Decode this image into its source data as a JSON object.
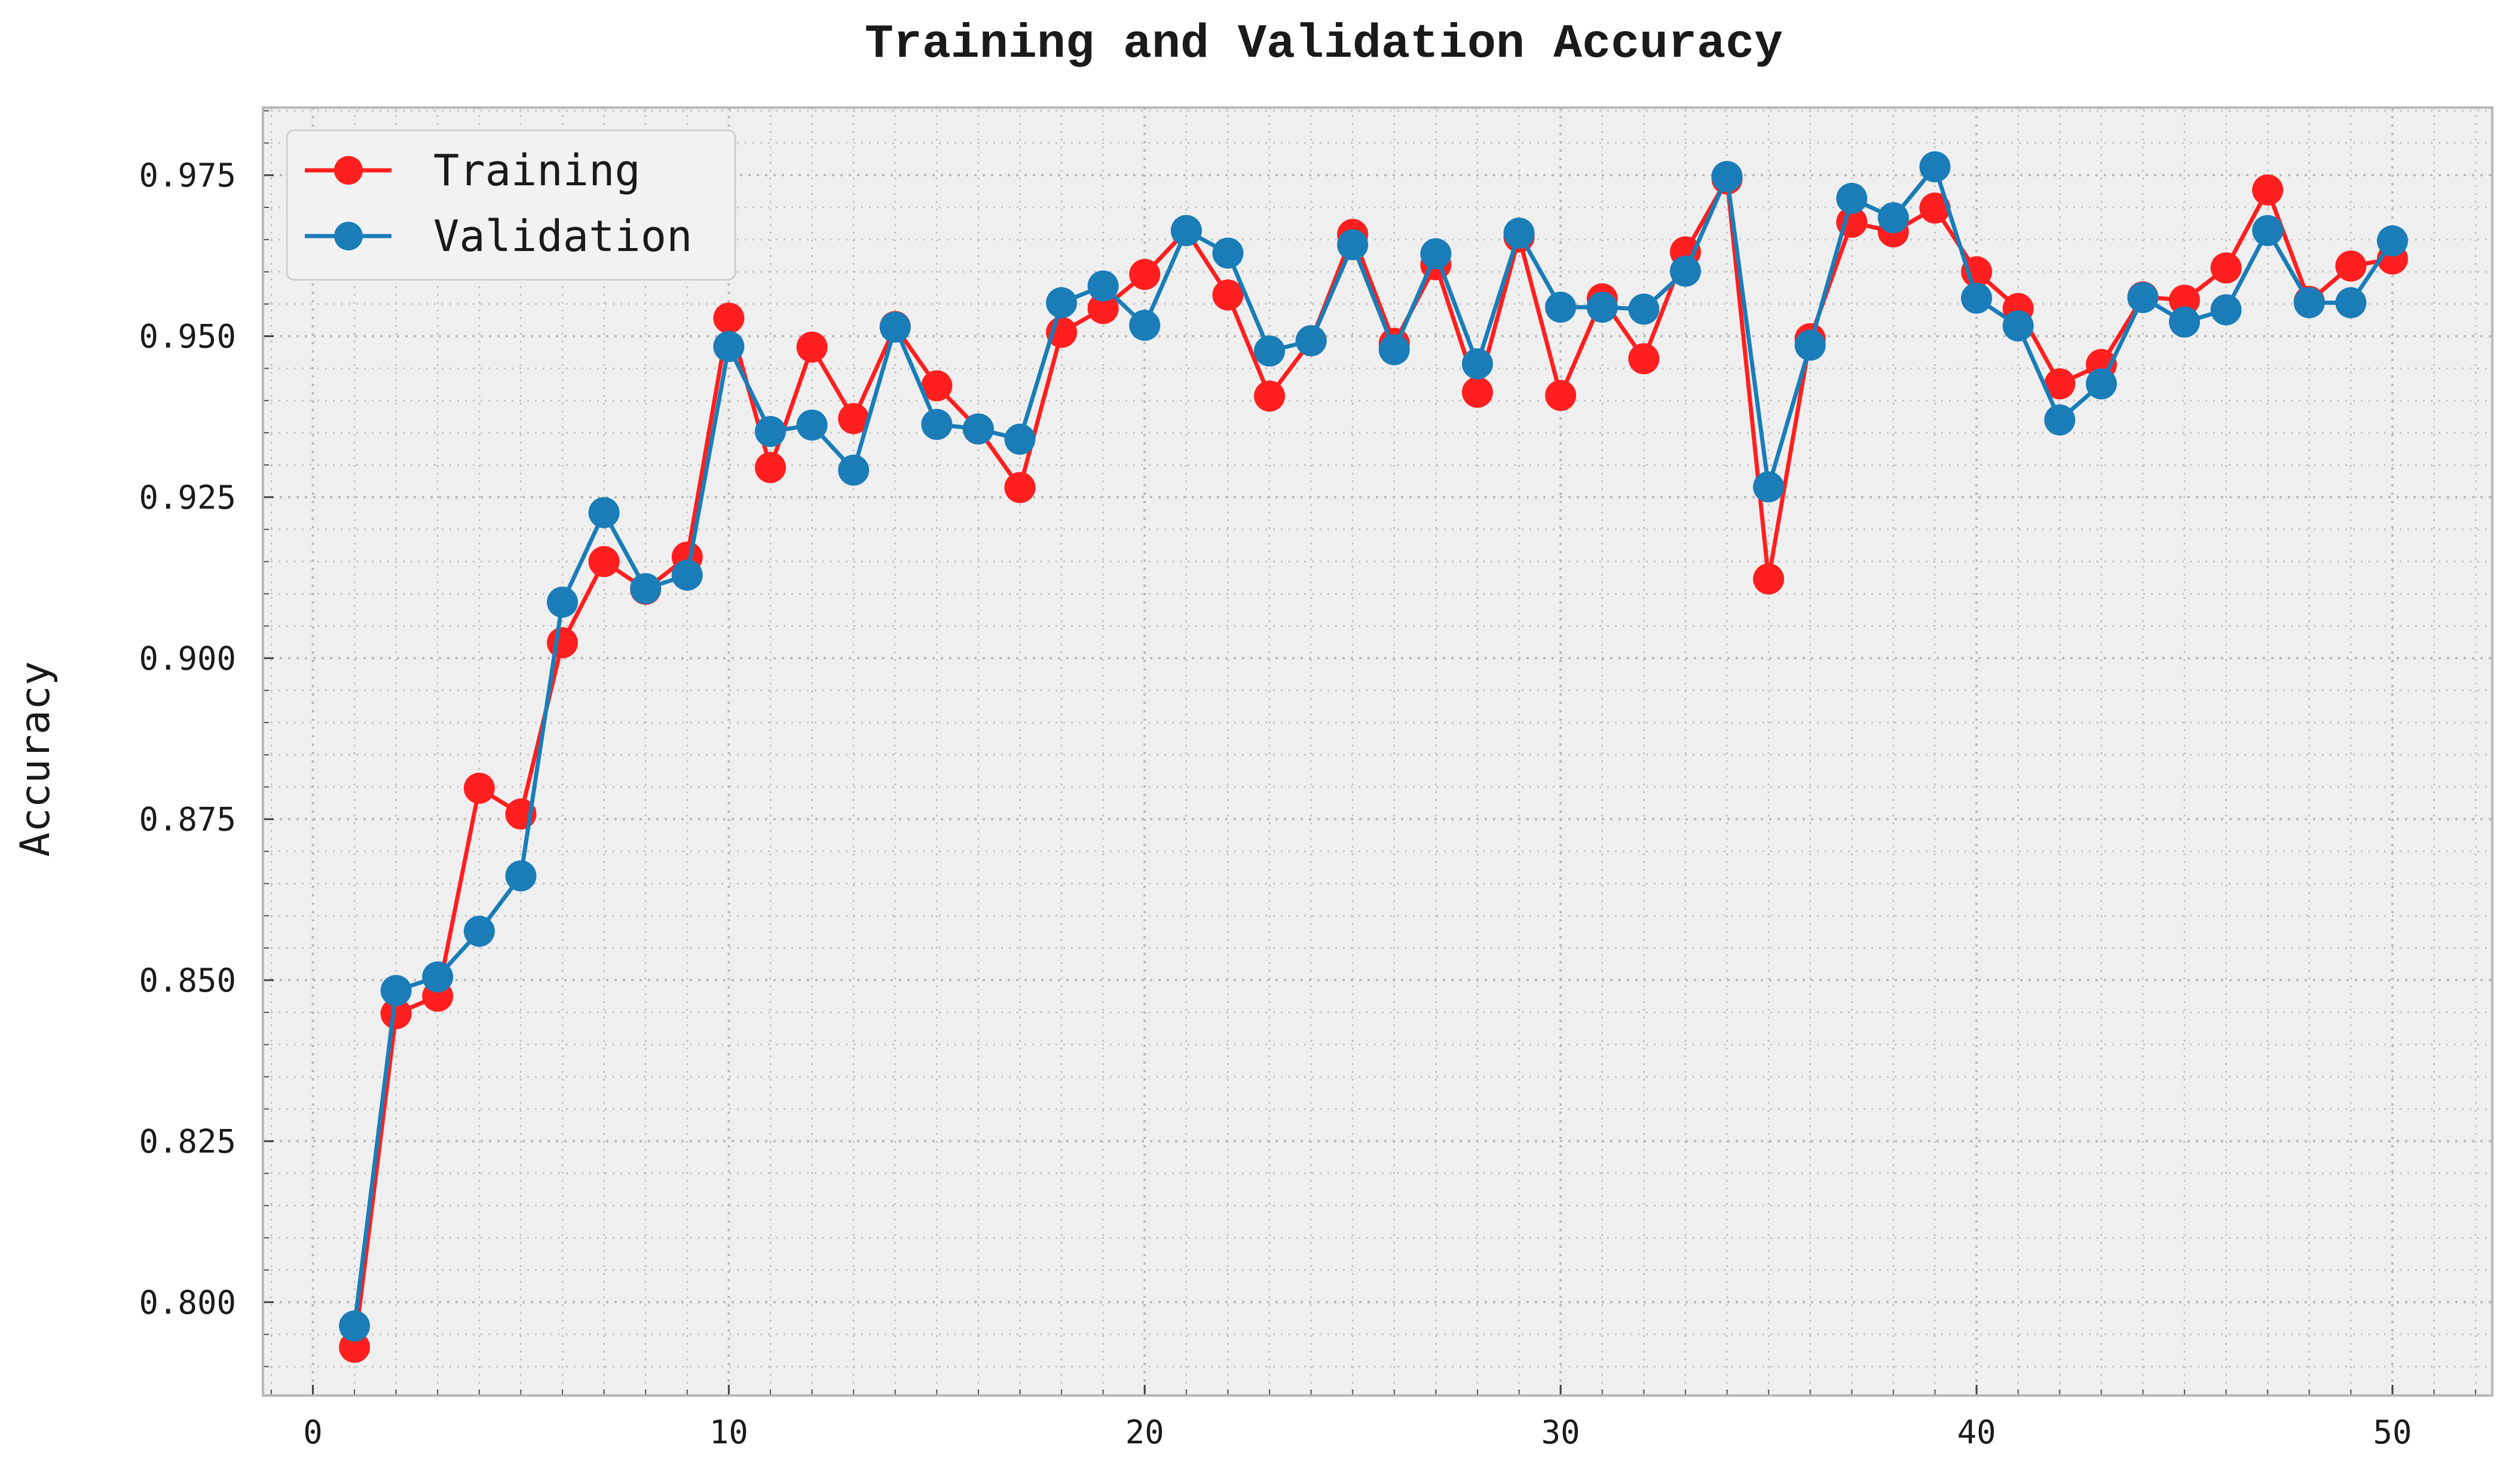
{
  "chart_data": {
    "type": "line",
    "title": "Training and Validation Accuracy",
    "xlabel": "",
    "ylabel": "Accuracy",
    "xlim": [
      -1.2,
      52.4
    ],
    "ylim": [
      0.7855,
      0.9855
    ],
    "xticks": [
      0,
      10,
      20,
      30,
      40,
      50
    ],
    "yticks": [
      0.8,
      0.825,
      0.85,
      0.875,
      0.9,
      0.925,
      0.95,
      0.975
    ],
    "ytick_labels": [
      "0.800",
      "0.825",
      "0.850",
      "0.875",
      "0.900",
      "0.925",
      "0.950",
      "0.975"
    ],
    "grid": true,
    "minor_grid": true,
    "legend_position": "top-left",
    "x": [
      1,
      2,
      3,
      4,
      5,
      6,
      7,
      8,
      9,
      10,
      11,
      12,
      13,
      14,
      15,
      16,
      17,
      18,
      19,
      20,
      21,
      22,
      23,
      24,
      25,
      26,
      27,
      28,
      29,
      30,
      31,
      32,
      33,
      34,
      35,
      36,
      37,
      38,
      39,
      40,
      41,
      42,
      43,
      44,
      45,
      46,
      47,
      48,
      49,
      50
    ],
    "series": [
      {
        "name": "Training",
        "color": "#ff1f1f",
        "values": [
          0.793,
          0.8448,
          0.8475,
          0.8798,
          0.8758,
          0.9024,
          0.915,
          0.9107,
          0.9157,
          0.9528,
          0.9296,
          0.9483,
          0.9372,
          0.9515,
          0.9423,
          0.9356,
          0.9265,
          0.9506,
          0.9543,
          0.9596,
          0.9664,
          0.9564,
          0.9407,
          0.9493,
          0.9658,
          0.9489,
          0.9611,
          0.9413,
          0.9654,
          0.9408,
          0.9558,
          0.9465,
          0.9631,
          0.9744,
          0.9123,
          0.9496,
          0.9677,
          0.9662,
          0.9699,
          0.96,
          0.9543,
          0.9426,
          0.9456,
          0.9561,
          0.9556,
          0.9606,
          0.9727,
          0.9554,
          0.9609,
          0.962
        ]
      },
      {
        "name": "Validation",
        "color": "#1a7db8",
        "values": [
          0.7963,
          0.8484,
          0.8505,
          0.8576,
          0.8662,
          0.9087,
          0.9226,
          0.9108,
          0.9129,
          0.9484,
          0.9352,
          0.9362,
          0.9292,
          0.9514,
          0.9363,
          0.9356,
          0.934,
          0.9552,
          0.9578,
          0.9517,
          0.9664,
          0.9629,
          0.9477,
          0.9493,
          0.9642,
          0.9479,
          0.9628,
          0.9457,
          0.966,
          0.9545,
          0.9545,
          0.9542,
          0.9601,
          0.9748,
          0.9266,
          0.9486,
          0.9714,
          0.9684,
          0.9763,
          0.9559,
          0.9516,
          0.937,
          0.9426,
          0.956,
          0.9522,
          0.9541,
          0.9664,
          0.9552,
          0.9552,
          0.9648
        ]
      }
    ]
  }
}
